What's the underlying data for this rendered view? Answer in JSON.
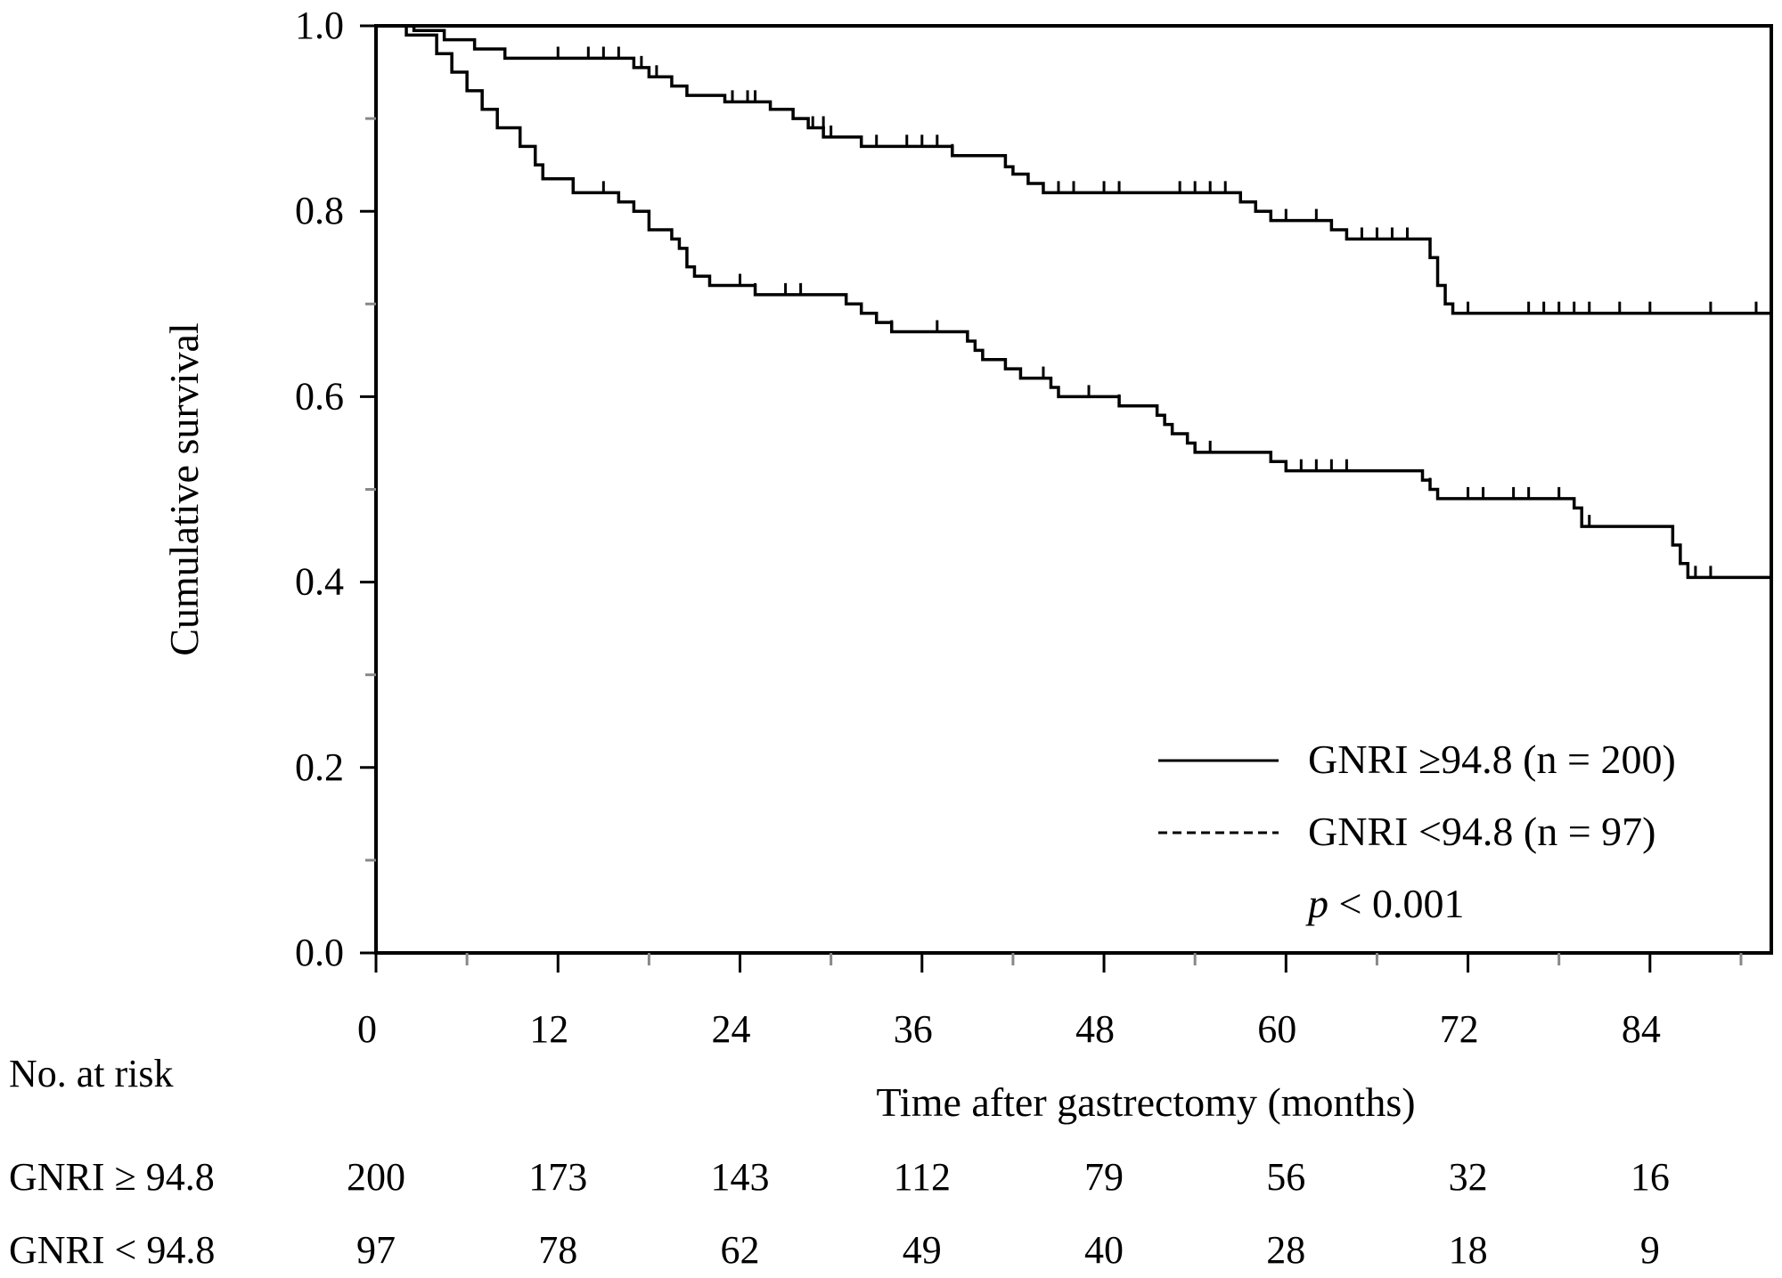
{
  "chart_data": {
    "type": "line",
    "subtype": "kaplan-meier",
    "title": "",
    "xlabel": "Time after gastrectomy (months)",
    "ylabel": "Cumulative survival",
    "xlim": [
      0,
      92
    ],
    "ylim": [
      0,
      1.0
    ],
    "x_ticks": [
      0,
      12,
      24,
      36,
      48,
      60,
      72,
      84
    ],
    "x_tick_labels": [
      "0",
      "12",
      "24",
      "36",
      "48",
      "60",
      "72",
      "84"
    ],
    "x_minor_ticks": [
      6,
      18,
      30,
      42,
      54,
      66,
      78,
      90
    ],
    "y_ticks": [
      0.0,
      0.2,
      0.4,
      0.6,
      0.8,
      1.0
    ],
    "y_tick_labels": [
      "0.0",
      "0.2",
      "0.4",
      "0.6",
      "0.8",
      "1.0"
    ],
    "y_minor_ticks": [
      0.1,
      0.3,
      0.5,
      0.7,
      0.9
    ],
    "grid": false,
    "legend": {
      "position": "bottom-right",
      "p_prefix": "p",
      "p_rest": " < 0.001"
    },
    "series": [
      {
        "name": "GNRI ≥94.8 (n = 200)",
        "style": "solid",
        "color": "#000000",
        "steps": [
          [
            0,
            1.0
          ],
          [
            2.5,
            0.995
          ],
          [
            4.5,
            0.985
          ],
          [
            6.5,
            0.975
          ],
          [
            8.5,
            0.965
          ],
          [
            17,
            0.955
          ],
          [
            18,
            0.945
          ],
          [
            19.5,
            0.935
          ],
          [
            20.5,
            0.925
          ],
          [
            23,
            0.918
          ],
          [
            26,
            0.91
          ],
          [
            27.5,
            0.9
          ],
          [
            28.5,
            0.89
          ],
          [
            29.5,
            0.88
          ],
          [
            32,
            0.87
          ],
          [
            38,
            0.86
          ],
          [
            41.5,
            0.848
          ],
          [
            42,
            0.84
          ],
          [
            43,
            0.83
          ],
          [
            44,
            0.82
          ],
          [
            57,
            0.81
          ],
          [
            58,
            0.8
          ],
          [
            59,
            0.79
          ],
          [
            63,
            0.78
          ],
          [
            64,
            0.77
          ],
          [
            69.5,
            0.75
          ],
          [
            70,
            0.72
          ],
          [
            70.5,
            0.7
          ],
          [
            71,
            0.69
          ],
          [
            92,
            0.69
          ]
        ],
        "censors": [
          [
            12,
            0.965
          ],
          [
            14,
            0.965
          ],
          [
            15,
            0.965
          ],
          [
            16,
            0.965
          ],
          [
            17.5,
            0.955
          ],
          [
            18.5,
            0.945
          ],
          [
            23.5,
            0.918
          ],
          [
            24.5,
            0.918
          ],
          [
            25,
            0.918
          ],
          [
            28.8,
            0.89
          ],
          [
            29.5,
            0.89
          ],
          [
            30,
            0.88
          ],
          [
            33,
            0.87
          ],
          [
            35,
            0.87
          ],
          [
            36,
            0.87
          ],
          [
            37,
            0.87
          ],
          [
            38,
            0.86
          ],
          [
            45,
            0.82
          ],
          [
            46,
            0.82
          ],
          [
            48,
            0.82
          ],
          [
            49,
            0.82
          ],
          [
            53,
            0.82
          ],
          [
            54,
            0.82
          ],
          [
            55,
            0.82
          ],
          [
            56,
            0.82
          ],
          [
            60,
            0.79
          ],
          [
            62,
            0.79
          ],
          [
            65,
            0.77
          ],
          [
            66,
            0.77
          ],
          [
            67,
            0.77
          ],
          [
            68,
            0.77
          ],
          [
            72,
            0.69
          ],
          [
            76,
            0.69
          ],
          [
            77,
            0.69
          ],
          [
            78,
            0.69
          ],
          [
            79,
            0.69
          ],
          [
            80,
            0.69
          ],
          [
            82,
            0.69
          ],
          [
            84,
            0.69
          ],
          [
            88,
            0.69
          ],
          [
            91,
            0.69
          ]
        ]
      },
      {
        "name": "GNRI <94.8 (n = 97)",
        "style": "dashed",
        "color": "#000000",
        "steps": [
          [
            0,
            1.0
          ],
          [
            2,
            0.99
          ],
          [
            4,
            0.97
          ],
          [
            5,
            0.95
          ],
          [
            6,
            0.93
          ],
          [
            7,
            0.91
          ],
          [
            8,
            0.89
          ],
          [
            9.5,
            0.87
          ],
          [
            10.5,
            0.85
          ],
          [
            11,
            0.835
          ],
          [
            13,
            0.82
          ],
          [
            16,
            0.81
          ],
          [
            17,
            0.8
          ],
          [
            18,
            0.78
          ],
          [
            19.5,
            0.77
          ],
          [
            20,
            0.76
          ],
          [
            20.5,
            0.74
          ],
          [
            21,
            0.73
          ],
          [
            22,
            0.72
          ],
          [
            25,
            0.71
          ],
          [
            31,
            0.7
          ],
          [
            32,
            0.69
          ],
          [
            33,
            0.68
          ],
          [
            34,
            0.67
          ],
          [
            39,
            0.66
          ],
          [
            39.5,
            0.65
          ],
          [
            40,
            0.64
          ],
          [
            41.5,
            0.63
          ],
          [
            42.5,
            0.62
          ],
          [
            44.5,
            0.61
          ],
          [
            45,
            0.6
          ],
          [
            49,
            0.59
          ],
          [
            51.5,
            0.58
          ],
          [
            52,
            0.57
          ],
          [
            52.5,
            0.56
          ],
          [
            53.5,
            0.55
          ],
          [
            54,
            0.54
          ],
          [
            59,
            0.53
          ],
          [
            60,
            0.52
          ],
          [
            69,
            0.51
          ],
          [
            69.5,
            0.5
          ],
          [
            70,
            0.49
          ],
          [
            79,
            0.48
          ],
          [
            79.5,
            0.46
          ],
          [
            85.5,
            0.44
          ],
          [
            86,
            0.42
          ],
          [
            86.5,
            0.405
          ],
          [
            92,
            0.405
          ]
        ],
        "censors": [
          [
            13,
            0.82
          ],
          [
            15,
            0.82
          ],
          [
            24,
            0.72
          ],
          [
            25,
            0.71
          ],
          [
            27,
            0.71
          ],
          [
            28,
            0.71
          ],
          [
            34,
            0.67
          ],
          [
            37,
            0.67
          ],
          [
            44,
            0.62
          ],
          [
            47,
            0.6
          ],
          [
            49,
            0.59
          ],
          [
            55,
            0.54
          ],
          [
            61,
            0.52
          ],
          [
            62,
            0.52
          ],
          [
            63,
            0.52
          ],
          [
            64,
            0.52
          ],
          [
            69.5,
            0.5
          ],
          [
            72,
            0.49
          ],
          [
            73,
            0.49
          ],
          [
            75,
            0.49
          ],
          [
            76,
            0.49
          ],
          [
            78,
            0.49
          ],
          [
            80,
            0.46
          ],
          [
            87,
            0.405
          ],
          [
            88,
            0.405
          ]
        ]
      }
    ],
    "risk_table": {
      "title": "No. at risk",
      "times": [
        0,
        12,
        24,
        36,
        48,
        60,
        72,
        84
      ],
      "rows": [
        {
          "label": "GNRI ≥ 94.8",
          "values": [
            "200",
            "173",
            "143",
            "112",
            "79",
            "56",
            "32",
            "16"
          ]
        },
        {
          "label": "GNRI < 94.8",
          "values": [
            "97",
            "78",
            "62",
            "49",
            "40",
            "28",
            "18",
            "9"
          ]
        }
      ]
    }
  }
}
